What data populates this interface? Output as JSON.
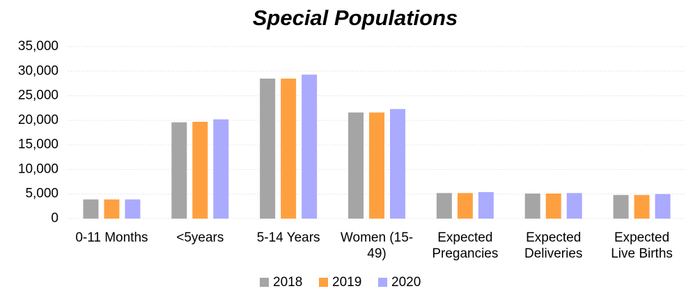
{
  "chart_data": {
    "type": "bar",
    "title": "Special Populations",
    "categories": [
      "0-11 Months",
      "<5years",
      "5-14 Years",
      "Women (15-49)",
      "Expected Pregancies",
      "Expected Deliveries",
      "Expected Live Births"
    ],
    "series": [
      {
        "name": "2018",
        "color": "#a5a5a5",
        "values": [
          3900,
          19600,
          28500,
          21600,
          5200,
          5100,
          4800
        ]
      },
      {
        "name": "2019",
        "color": "#ffa040",
        "values": [
          3900,
          19700,
          28500,
          21600,
          5200,
          5100,
          4800
        ]
      },
      {
        "name": "2020",
        "color": "#aaaaff",
        "values": [
          3900,
          20200,
          29300,
          22300,
          5400,
          5200,
          5000
        ]
      }
    ],
    "ylim": [
      0,
      35000
    ],
    "yticks": [
      0,
      {
        "value": 5000,
        "label": "5,000"
      },
      {
        "value": 10000,
        "label": "10,000"
      },
      {
        "value": 15000,
        "label": "15,000"
      },
      {
        "value": 20000,
        "label": "20,000"
      },
      {
        "value": 25000,
        "label": "25,000"
      },
      {
        "value": 30000,
        "label": "30,000"
      },
      {
        "value": 35000,
        "label": "35,000"
      }
    ],
    "grid": true,
    "legend": "bottom"
  }
}
